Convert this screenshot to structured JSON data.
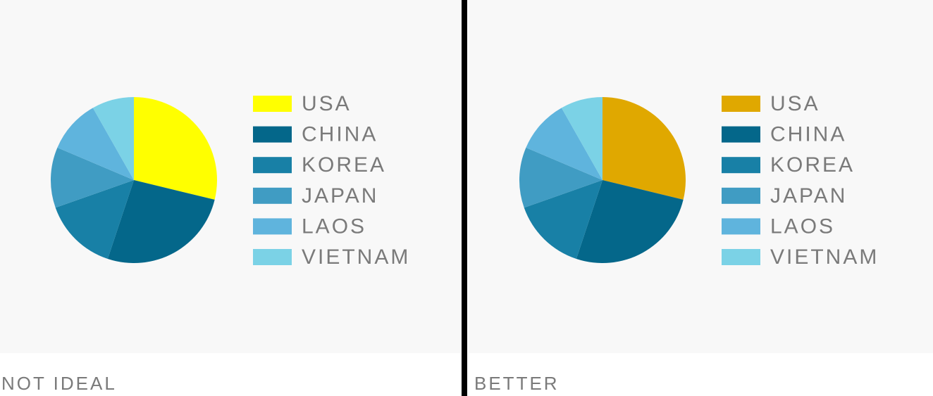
{
  "chart_data": [
    {
      "type": "pie",
      "caption": "NOT IDEAL",
      "categories": [
        "USA",
        "CHINA",
        "KOREA",
        "JAPAN",
        "LAOS",
        "VIETNAM"
      ],
      "values": [
        28.8,
        26.3,
        14.5,
        11.8,
        10.4,
        8.2
      ],
      "colors": [
        "#ffff00",
        "#04678a",
        "#1880a6",
        "#409cc3",
        "#5fb4dd",
        "#7bd2e6"
      ],
      "legend_position": "right"
    },
    {
      "type": "pie",
      "caption": "BETTER",
      "categories": [
        "USA",
        "CHINA",
        "KOREA",
        "JAPAN",
        "LAOS",
        "VIETNAM"
      ],
      "values": [
        28.8,
        26.3,
        14.5,
        11.8,
        10.4,
        8.2
      ],
      "colors": [
        "#e0a800",
        "#04678a",
        "#1880a6",
        "#409cc3",
        "#5fb4dd",
        "#7bd2e6"
      ],
      "legend_position": "right"
    }
  ]
}
